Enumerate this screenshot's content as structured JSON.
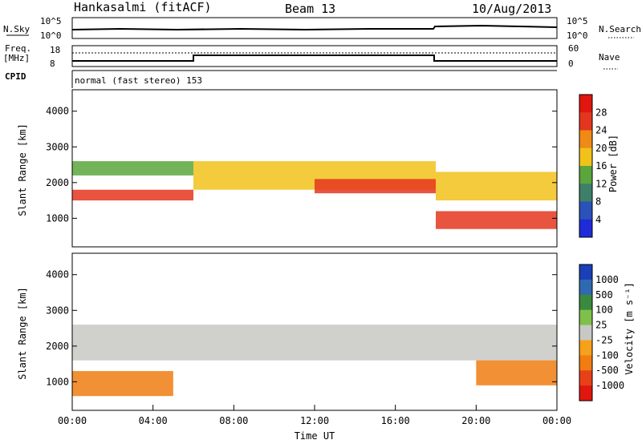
{
  "header": {
    "station": "Hankasalmi (fitACF)",
    "beam": "Beam 13",
    "date": "10/Aug/2013"
  },
  "strip_labels": {
    "nsky": "N.Sky",
    "nsky_ticks": [
      "10^5",
      "10^0"
    ],
    "nsearch": "N.Search",
    "nsearch_ticks": [
      "10^5",
      "10^0"
    ],
    "freq_line1": "Freq.",
    "freq_line2": "[MHz]",
    "freq_ticks": [
      "18",
      "8"
    ],
    "nave": "Nave",
    "nave_ticks": [
      "60",
      "0"
    ],
    "cpid": "CPID",
    "mode": "normal (fast stereo) 153"
  },
  "chart_data": [
    {
      "type": "heatmap",
      "name": "power",
      "ylabel": "Slant Range [km]",
      "xlabel": "",
      "y_ticks": [
        "1000",
        "2000",
        "3000",
        "4000"
      ],
      "ylim": [
        200,
        4600
      ],
      "x_range_hours": [
        0,
        24
      ],
      "colorbar": {
        "label": "Power [dB]",
        "ticks": [
          "4",
          "8",
          "12",
          "16",
          "20",
          "24",
          "28"
        ],
        "colors": [
          "#1f2bd8",
          "#2b52b8",
          "#3e7f6a",
          "#5aa63d",
          "#f1c21a",
          "#f08a16",
          "#e4361e",
          "#e0160f"
        ]
      },
      "bands": [
        {
          "start": 0,
          "end": 6,
          "range": [
            1500,
            1800
          ],
          "level": 24
        },
        {
          "start": 0,
          "end": 6,
          "range": [
            2200,
            2600
          ],
          "level": 12
        },
        {
          "start": 6,
          "end": 18,
          "range": [
            1800,
            2600
          ],
          "level": 16
        },
        {
          "start": 12,
          "end": 18,
          "range": [
            1700,
            2100
          ],
          "level": 24
        },
        {
          "start": 18,
          "end": 24,
          "range": [
            700,
            1200
          ],
          "level": 26
        },
        {
          "start": 18,
          "end": 24,
          "range": [
            1500,
            2300
          ],
          "level": 18
        }
      ]
    },
    {
      "type": "heatmap",
      "name": "velocity",
      "ylabel": "Slant Range [km]",
      "xlabel": "Time UT",
      "x_ticks": [
        "00:00",
        "04:00",
        "08:00",
        "12:00",
        "16:00",
        "20:00",
        "00:00"
      ],
      "y_ticks": [
        "1000",
        "2000",
        "3000",
        "4000"
      ],
      "ylim": [
        200,
        4600
      ],
      "colorbar": {
        "label": "Velocity [m s⁻¹]",
        "ticks": [
          "1000",
          "500",
          "100",
          "25",
          "-25",
          "-100",
          "-500",
          "-1000"
        ],
        "colors": [
          "#1a3fb8",
          "#2f6ab1",
          "#3a8a3e",
          "#7ec04a",
          "#c8c8c4",
          "#f7a11a",
          "#f07c12",
          "#e8411a",
          "#e0160f"
        ]
      },
      "bands": [
        {
          "start": 0,
          "end": 24,
          "range": [
            1600,
            2600
          ],
          "level": 0
        },
        {
          "start": 0,
          "end": 5,
          "range": [
            600,
            1300
          ],
          "level": -150
        },
        {
          "start": 20,
          "end": 24,
          "range": [
            900,
            1600
          ],
          "level": -500
        }
      ]
    }
  ]
}
